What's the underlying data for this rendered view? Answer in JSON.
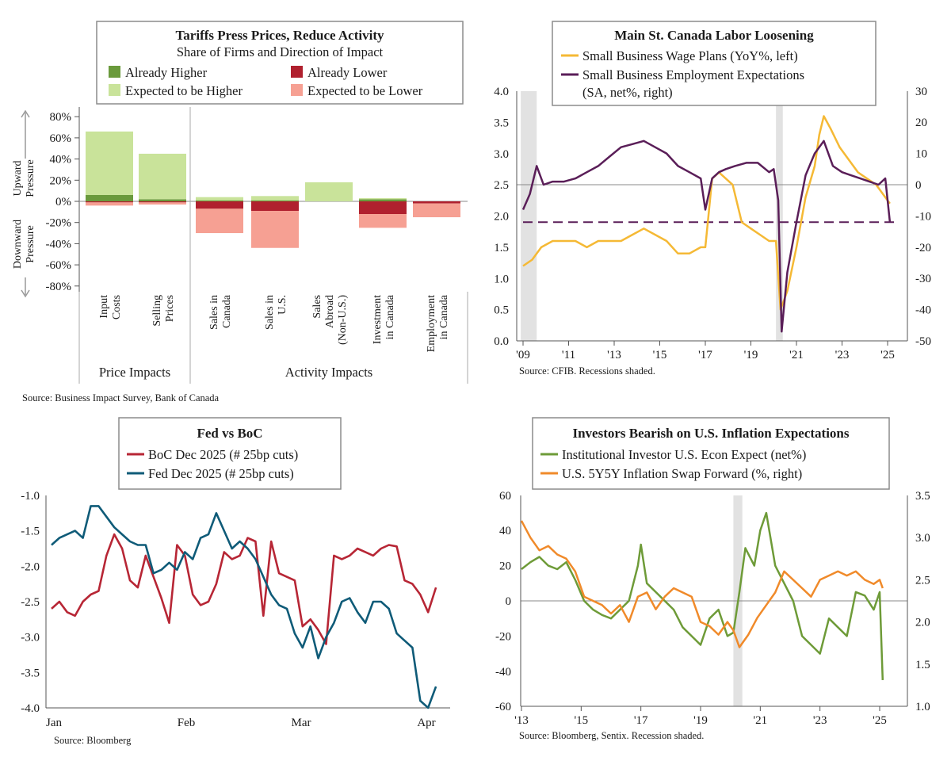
{
  "charts": {
    "tariffs": {
      "title": "Tariffs Press Prices, Reduce Activity",
      "subtitle": "Share of Firms and Direction of Impact",
      "legend": [
        "Already Higher",
        "Already Lower",
        "Expected to be Higher",
        "Expected to be Lower"
      ],
      "y_ticks": [
        "80%",
        "60%",
        "40%",
        "20%",
        "0%",
        "-20%",
        "-40%",
        "-60%",
        "-80%"
      ],
      "up_label": [
        "Upward",
        "Pressure"
      ],
      "down_label": [
        "Downward",
        "Pressure"
      ],
      "categories": [
        [
          "Input",
          "Costs"
        ],
        [
          "Selling",
          "Prices"
        ],
        [
          "Sales in",
          "Canada"
        ],
        [
          "Sales in",
          "U.S."
        ],
        [
          "Sales",
          "Abroad",
          "(Non-U.S.)"
        ],
        [
          "Investment",
          "in Canada"
        ],
        [
          "Employment",
          "in Canada"
        ]
      ],
      "group_labels": [
        "Price Impacts",
        "Activity Impacts"
      ],
      "source": "Source: Business Impact Survey, Bank of Canada"
    },
    "cfib": {
      "title": "Main St. Canada Labor Loosening",
      "legend": [
        "Small Business Wage Plans (YoY%, left)",
        "Small Business Employment Expectations",
        "(SA, net%, right)"
      ],
      "left_ticks": [
        "4.0",
        "3.5",
        "3.0",
        "2.5",
        "2.0",
        "1.5",
        "1.0",
        "0.5",
        "0.0"
      ],
      "right_ticks": [
        "30",
        "20",
        "10",
        "0",
        "-10",
        "-20",
        "-30",
        "-40",
        "-50"
      ],
      "x_ticks": [
        "'09",
        "'11",
        "'13",
        "'15",
        "'17",
        "'19",
        "'21",
        "'23",
        "'25"
      ],
      "source": "Source: CFIB. Recessions shaded."
    },
    "fedboc": {
      "title": "Fed vs BoC",
      "legend": [
        "BoC Dec 2025 (# 25bp cuts)",
        "Fed Dec 2025 (# 25bp cuts)"
      ],
      "y_ticks": [
        "-1.0",
        "-1.5",
        "-2.0",
        "-2.5",
        "-3.0",
        "-3.5",
        "-4.0"
      ],
      "x_ticks": [
        "Jan",
        "Feb",
        "Mar",
        "Apr"
      ],
      "source": "Source: Bloomberg"
    },
    "inflation": {
      "title": "Investors Bearish on U.S. Inflation Expectations",
      "legend": [
        "Institutional Investor U.S. Econ Expect (net%)",
        "U.S. 5Y5Y Inflation Swap Forward (%, right)"
      ],
      "left_ticks": [
        "60",
        "40",
        "20",
        "0",
        "-20",
        "-40",
        "-60"
      ],
      "right_ticks": [
        "3.5",
        "3.0",
        "2.5",
        "2.0",
        "1.5",
        "1.0"
      ],
      "x_ticks": [
        "'13",
        "'15",
        "'17",
        "'19",
        "'21",
        "'23",
        "'25"
      ],
      "source": "Source: Bloomberg, Sentix. Recession shaded."
    }
  },
  "colors": {
    "already_higher": "#6a9a3c",
    "expected_higher": "#c9e39a",
    "already_lower": "#b0202e",
    "expected_lower": "#f6a093",
    "wage": "#f5b935",
    "employment": "#5a1e58",
    "boc": "#b72635",
    "fed": "#0f5b78",
    "sentix": "#6e9b38",
    "swap": "#f08a2a",
    "recession": "#e2e2e2"
  },
  "chart_data": [
    {
      "type": "bar",
      "title": "Tariffs Press Prices, Reduce Activity",
      "subtitle": "Share of Firms and Direction of Impact",
      "categories": [
        "Input Costs",
        "Selling Prices",
        "Sales in Canada",
        "Sales in U.S.",
        "Sales Abroad (Non-U.S.)",
        "Investment in Canada",
        "Employment in Canada"
      ],
      "series": [
        {
          "name": "Already Higher",
          "values": [
            6,
            2,
            1,
            1,
            0,
            2,
            0
          ]
        },
        {
          "name": "Expected to be Higher",
          "values": [
            60,
            43,
            3,
            4,
            18,
            1,
            0
          ]
        },
        {
          "name": "Already Lower",
          "values": [
            -1,
            -1,
            -7,
            -9,
            0,
            -12,
            -2
          ]
        },
        {
          "name": "Expected to be Lower",
          "values": [
            -3,
            -2,
            -23,
            -35,
            0,
            -13,
            -13
          ]
        }
      ],
      "ylim": [
        -80,
        80
      ]
    },
    {
      "type": "line",
      "title": "Main St. Canada Labor Loosening",
      "x_range": [
        2009,
        2025
      ],
      "ylim_left": [
        0,
        4
      ],
      "ylim_right": [
        -50,
        30
      ],
      "recessions": [
        [
          2008.9,
          2009.6
        ],
        [
          2020.1,
          2020.4
        ]
      ],
      "reference_line_right": -12,
      "series": [
        {
          "name": "Small Business Wage Plans (YoY%, left)",
          "axis": "left",
          "x": [
            2009.0,
            2009.4,
            2009.8,
            2010.3,
            2010.8,
            2011.3,
            2011.8,
            2012.3,
            2012.8,
            2013.3,
            2013.8,
            2014.3,
            2014.8,
            2015.3,
            2015.8,
            2016.3,
            2016.8,
            2017.0,
            2017.3,
            2017.6,
            2017.9,
            2018.2,
            2018.6,
            2019.0,
            2019.4,
            2019.8,
            2020.1,
            2020.3,
            2020.6,
            2021.0,
            2021.4,
            2021.8,
            2022.0,
            2022.2,
            2022.5,
            2022.9,
            2023.3,
            2023.7,
            2024.1,
            2024.5,
            2024.9,
            2025.1
          ],
          "y": [
            1.2,
            1.3,
            1.5,
            1.6,
            1.6,
            1.6,
            1.5,
            1.6,
            1.6,
            1.6,
            1.7,
            1.8,
            1.7,
            1.6,
            1.4,
            1.4,
            1.5,
            1.5,
            2.6,
            2.7,
            2.6,
            2.5,
            1.9,
            1.8,
            1.7,
            1.6,
            1.6,
            0.5,
            0.8,
            1.5,
            2.3,
            2.8,
            3.3,
            3.6,
            3.4,
            3.1,
            2.9,
            2.7,
            2.6,
            2.5,
            2.3,
            2.2
          ]
        },
        {
          "name": "Small Business Employment Expectations (SA, net%, right)",
          "axis": "right",
          "x": [
            2009.0,
            2009.3,
            2009.6,
            2009.9,
            2010.3,
            2010.8,
            2011.3,
            2011.8,
            2012.3,
            2012.8,
            2013.3,
            2013.8,
            2014.3,
            2014.8,
            2015.3,
            2015.8,
            2016.3,
            2016.8,
            2017.0,
            2017.3,
            2017.6,
            2017.9,
            2018.3,
            2018.8,
            2019.3,
            2019.8,
            2020.0,
            2020.2,
            2020.35,
            2020.6,
            2021.0,
            2021.4,
            2021.8,
            2022.2,
            2022.6,
            2023.0,
            2023.4,
            2023.8,
            2024.2,
            2024.6,
            2024.9,
            2025.1
          ],
          "y": [
            -8,
            -3,
            6,
            0,
            1,
            1,
            2,
            4,
            6,
            9,
            12,
            13,
            14,
            12,
            10,
            6,
            4,
            2,
            -8,
            2,
            4,
            5,
            6,
            7,
            7,
            4,
            5,
            -5,
            -47,
            -28,
            -12,
            3,
            10,
            14,
            6,
            4,
            3,
            2,
            1,
            0,
            2,
            -12
          ]
        }
      ]
    },
    {
      "type": "line",
      "title": "Fed vs BoC",
      "x_ticks": [
        "Jan",
        "Feb",
        "Mar",
        "Apr"
      ],
      "ylim": [
        -4.0,
        -1.0
      ],
      "series": [
        {
          "name": "BoC Dec 2025 (# 25bp cuts)",
          "x": [
            0,
            2,
            4,
            6,
            8,
            10,
            12,
            14,
            16,
            18,
            20,
            22,
            24,
            26,
            28,
            30,
            32,
            34,
            36,
            38,
            40,
            42,
            44,
            46,
            48,
            50,
            52,
            54,
            56,
            58,
            60,
            62,
            64,
            66,
            68,
            70,
            72,
            74,
            76,
            78,
            80,
            82,
            84,
            86,
            88,
            90,
            92,
            94,
            96,
            98
          ],
          "y": [
            -2.6,
            -2.5,
            -2.65,
            -2.7,
            -2.5,
            -2.4,
            -2.35,
            -1.85,
            -1.55,
            -1.75,
            -2.2,
            -2.3,
            -1.85,
            -2.15,
            -2.45,
            -2.8,
            -1.7,
            -1.85,
            -2.4,
            -2.55,
            -2.5,
            -2.25,
            -1.8,
            -1.9,
            -1.85,
            -1.6,
            -1.65,
            -2.7,
            -1.65,
            -2.1,
            -2.15,
            -2.2,
            -2.85,
            -2.75,
            -2.9,
            -3.1,
            -1.85,
            -1.9,
            -1.85,
            -1.75,
            -1.8,
            -1.85,
            -1.75,
            -1.7,
            -1.72,
            -2.2,
            -2.25,
            -2.4,
            -2.65,
            -2.3
          ]
        },
        {
          "name": "Fed Dec 2025 (# 25bp cuts)",
          "x": [
            0,
            2,
            4,
            6,
            8,
            10,
            12,
            14,
            16,
            18,
            20,
            22,
            24,
            26,
            28,
            30,
            32,
            34,
            36,
            38,
            40,
            42,
            44,
            46,
            48,
            50,
            52,
            54,
            56,
            58,
            60,
            62,
            64,
            66,
            68,
            70,
            72,
            74,
            76,
            78,
            80,
            82,
            84,
            86,
            88,
            90,
            92,
            94,
            96,
            98
          ],
          "y": [
            -1.7,
            -1.6,
            -1.55,
            -1.5,
            -1.6,
            -1.15,
            -1.15,
            -1.3,
            -1.45,
            -1.55,
            -1.65,
            -1.7,
            -1.7,
            -2.1,
            -2.05,
            -1.95,
            -2.05,
            -1.8,
            -1.9,
            -1.6,
            -1.55,
            -1.25,
            -1.5,
            -1.75,
            -1.65,
            -1.75,
            -1.9,
            -2.15,
            -2.4,
            -2.55,
            -2.6,
            -2.95,
            -3.15,
            -2.85,
            -3.3,
            -3.0,
            -2.8,
            -2.5,
            -2.45,
            -2.65,
            -2.8,
            -2.5,
            -2.5,
            -2.6,
            -2.95,
            -3.05,
            -3.15,
            -3.9,
            -4.0,
            -3.7
          ]
        }
      ]
    },
    {
      "type": "line",
      "title": "Investors Bearish on U.S. Inflation Expectations",
      "x_range": [
        2013,
        2025
      ],
      "ylim_left": [
        -60,
        60
      ],
      "ylim_right": [
        1.0,
        3.5
      ],
      "recessions": [
        [
          2020.1,
          2020.4
        ]
      ],
      "series": [
        {
          "name": "Institutional Investor U.S. Econ Expect (net%)",
          "axis": "left",
          "x": [
            2013.0,
            2013.3,
            2013.6,
            2013.9,
            2014.2,
            2014.5,
            2014.8,
            2015.1,
            2015.4,
            2015.7,
            2016.0,
            2016.3,
            2016.6,
            2016.9,
            2017.0,
            2017.2,
            2017.5,
            2017.8,
            2018.1,
            2018.4,
            2018.7,
            2019.0,
            2019.3,
            2019.6,
            2019.9,
            2020.1,
            2020.3,
            2020.5,
            2020.8,
            2021.0,
            2021.2,
            2021.5,
            2021.8,
            2022.1,
            2022.4,
            2022.7,
            2023.0,
            2023.3,
            2023.6,
            2023.9,
            2024.2,
            2024.5,
            2024.8,
            2025.0,
            2025.1
          ],
          "y": [
            18,
            22,
            25,
            20,
            18,
            22,
            12,
            0,
            -5,
            -8,
            -10,
            -5,
            0,
            20,
            32,
            10,
            5,
            0,
            -5,
            -15,
            -20,
            -25,
            -10,
            -5,
            -20,
            -18,
            5,
            30,
            20,
            40,
            50,
            20,
            10,
            0,
            -20,
            -25,
            -30,
            -10,
            -15,
            -20,
            5,
            3,
            -5,
            5,
            -45
          ]
        },
        {
          "name": "U.S. 5Y5Y Inflation Swap Forward (%, right)",
          "axis": "right",
          "x": [
            2013.0,
            2013.3,
            2013.6,
            2013.9,
            2014.2,
            2014.5,
            2014.8,
            2015.1,
            2015.4,
            2015.7,
            2016.0,
            2016.3,
            2016.6,
            2016.9,
            2017.2,
            2017.5,
            2017.8,
            2018.1,
            2018.4,
            2018.7,
            2019.0,
            2019.3,
            2019.6,
            2019.9,
            2020.1,
            2020.3,
            2020.6,
            2020.9,
            2021.2,
            2021.5,
            2021.8,
            2022.1,
            2022.4,
            2022.7,
            2023.0,
            2023.3,
            2023.6,
            2023.9,
            2024.2,
            2024.5,
            2024.8,
            2025.0,
            2025.1
          ],
          "y": [
            3.2,
            3.0,
            2.85,
            2.9,
            2.8,
            2.75,
            2.6,
            2.3,
            2.25,
            2.2,
            2.1,
            2.2,
            2.0,
            2.3,
            2.35,
            2.15,
            2.3,
            2.4,
            2.35,
            2.3,
            2.0,
            1.95,
            1.85,
            2.0,
            1.9,
            1.7,
            1.85,
            2.05,
            2.2,
            2.35,
            2.6,
            2.5,
            2.4,
            2.3,
            2.5,
            2.55,
            2.6,
            2.55,
            2.6,
            2.5,
            2.45,
            2.5,
            2.4
          ]
        }
      ]
    }
  ]
}
